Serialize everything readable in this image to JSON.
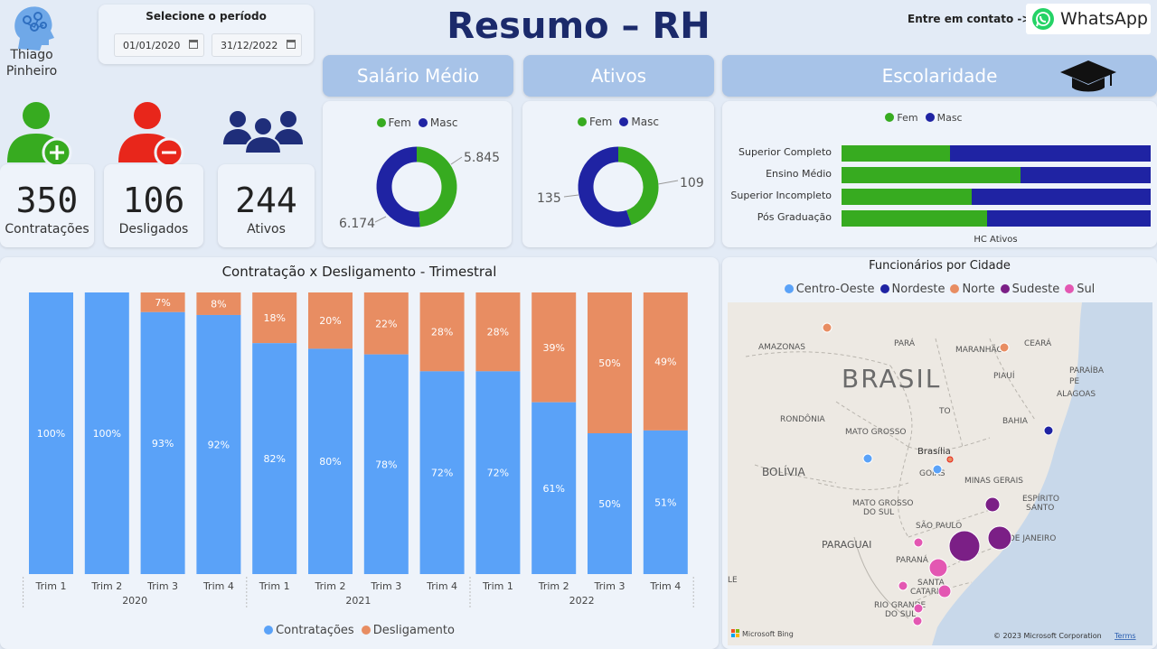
{
  "brand": {
    "name_line1": "Thiago",
    "name_line2": "Pinheiro",
    "logo_icon": "brain-head-icon"
  },
  "period": {
    "label": "Selecione o período",
    "start": "01/01/2020",
    "end": "31/12/2022"
  },
  "title": "Resumo – RH",
  "contact": {
    "label": "Entre em contato ->",
    "button": "WhatsApp"
  },
  "kpis": [
    {
      "value": "350",
      "label": "Contratações",
      "icon": "add-user-icon"
    },
    {
      "value": "106",
      "label": "Desligados",
      "icon": "remove-user-icon"
    },
    {
      "value": "244",
      "label": "Ativos",
      "icon": "group-icon"
    }
  ],
  "headers": {
    "salario": "Salário Médio",
    "ativos": "Ativos",
    "escolaridade": "Escolaridade"
  },
  "legend_gender": {
    "fem": "Fem",
    "masc": "Masc"
  },
  "colors": {
    "fem": "#37ab20",
    "masc": "#1f23a3",
    "contratacoes": "#5aa2f8",
    "desligamento": "#e88d62"
  },
  "donut_salario": {
    "fem_label": "5.845",
    "masc_label": "6.174",
    "fem": 5845,
    "masc": 6174
  },
  "donut_ativos": {
    "fem_label": "109",
    "masc_label": "135",
    "fem": 109,
    "masc": 135
  },
  "escolaridade": {
    "xlabel": "HC Ativos",
    "rows": [
      {
        "label": "Superior Completo",
        "fem_share": 0.35
      },
      {
        "label": "Ensino Médio",
        "fem_share": 0.58
      },
      {
        "label": "Superior Incompleto",
        "fem_share": 0.42
      },
      {
        "label": "Pós Graduação",
        "fem_share": 0.47
      }
    ]
  },
  "chart_data": {
    "type": "bar",
    "title": "Contratação x Desligamento - Trimestral",
    "stacked": "100%",
    "categories": [
      "Trim 1",
      "Trim 2",
      "Trim 3",
      "Trim 4",
      "Trim 1",
      "Trim 2",
      "Trim 3",
      "Trim 4",
      "Trim 1",
      "Trim 2",
      "Trim 3",
      "Trim 4"
    ],
    "groups": [
      {
        "label": "2020",
        "count": 4
      },
      {
        "label": "2021",
        "count": 4
      },
      {
        "label": "2022",
        "count": 4
      }
    ],
    "series": [
      {
        "name": "Contratações",
        "values": [
          100,
          100,
          93,
          92,
          82,
          80,
          78,
          72,
          72,
          61,
          50,
          51
        ],
        "labels": [
          "100%",
          "100%",
          "93%",
          "92%",
          "82%",
          "80%",
          "78%",
          "72%",
          "72%",
          "61%",
          "50%",
          "51%"
        ]
      },
      {
        "name": "Desligamento",
        "values": [
          0,
          0,
          7,
          8,
          18,
          20,
          22,
          28,
          28,
          39,
          50,
          49
        ],
        "labels": [
          "",
          "",
          "7%",
          "8%",
          "18%",
          "20%",
          "22%",
          "28%",
          "28%",
          "39%",
          "50%",
          "49%"
        ]
      }
    ],
    "legend": "bottom"
  },
  "map": {
    "title": "Funcionários por Cidade",
    "legend": [
      {
        "name": "Centro-Oeste",
        "color": "#5aa2f8"
      },
      {
        "name": "Nordeste",
        "color": "#1f23a3"
      },
      {
        "name": "Norte",
        "color": "#e88d62"
      },
      {
        "name": "Sudeste",
        "color": "#7b1f86"
      },
      {
        "name": "Sul",
        "color": "#e357b2"
      }
    ],
    "labels": {
      "brasil": "BRASIL",
      "amazonas": "AMAZONAS",
      "para": "PARÁ",
      "maranhao": "MARANHÃO",
      "ceara": "CEARÁ",
      "piaui": "PIAUÍ",
      "paraiba": "PARAÍBA",
      "pe": "PE",
      "alagoas": "ALAGOAS",
      "bahia": "BAHIA",
      "rondonia": "RONDÔNIA",
      "mato_grosso": "MATO GROSSO",
      "to": "TO",
      "brasilia": "Brasília",
      "goias": "GOIÁS",
      "minas": "MINAS GERAIS",
      "espirito": "ESPÍRITO",
      "santo": "SANTO",
      "bolivia": "BOLÍVIA",
      "ms1": "MATO GROSSO",
      "ms2": "DO SUL",
      "sao_paulo": "SÃO PAULO",
      "rio": "RIO DE JANEIRO",
      "paraguai": "PARAGUAI",
      "parana": "PARANÁ",
      "sc1": "SANTA",
      "sc2": "CATARINA",
      "rs1": "RIO GRANDE",
      "rs2": "DO SUL",
      "le": "LE"
    },
    "attribution": "© 2023 Microsoft Corporation",
    "terms": "Terms",
    "bing": "Microsoft Bing"
  }
}
